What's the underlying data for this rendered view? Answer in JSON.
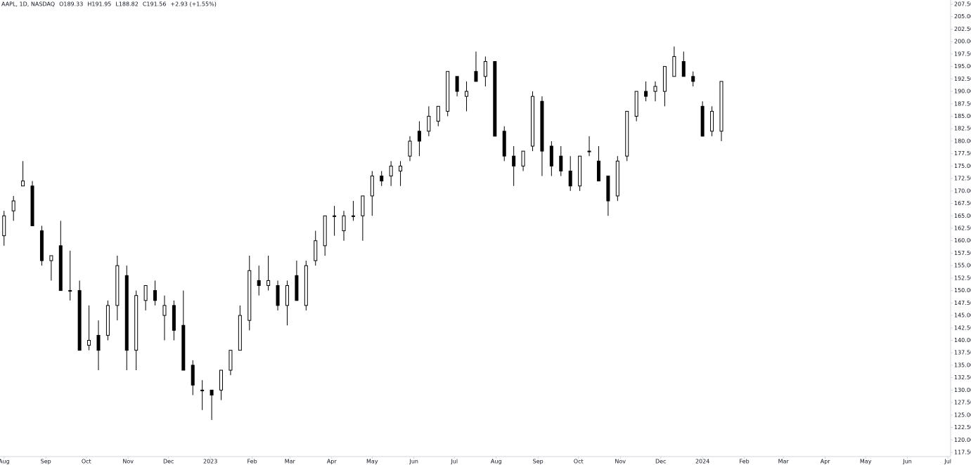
{
  "chart_data": {
    "type": "candlestick",
    "title": "AAPL, 1D, NASDAQ",
    "legend_values": [
      "O189.33",
      "H191.95",
      "L188.82",
      "C191.56",
      "+2.93 (+1.55%)"
    ],
    "up_color": "#ffffff",
    "down_color": "#000000",
    "edge_color": "#000000",
    "xlim": [
      -3,
      702
    ],
    "xticks": [
      {
        "value": 0,
        "label": "Aug"
      },
      {
        "value": 31,
        "label": "Sep"
      },
      {
        "value": 61,
        "label": "Oct"
      },
      {
        "value": 92,
        "label": "Nov"
      },
      {
        "value": 122,
        "label": "Dec"
      },
      {
        "value": 153,
        "label": "2023"
      },
      {
        "value": 184,
        "label": "Feb"
      },
      {
        "value": 212,
        "label": "Mar"
      },
      {
        "value": 243,
        "label": "Apr"
      },
      {
        "value": 273,
        "label": "May"
      },
      {
        "value": 304,
        "label": "Jun"
      },
      {
        "value": 334,
        "label": "Jul"
      },
      {
        "value": 365,
        "label": "Aug"
      },
      {
        "value": 396,
        "label": "Sep"
      },
      {
        "value": 426,
        "label": "Oct"
      },
      {
        "value": 457,
        "label": "Nov"
      },
      {
        "value": 487,
        "label": "Dec"
      },
      {
        "value": 518,
        "label": "2024"
      },
      {
        "value": 549,
        "label": "Feb"
      },
      {
        "value": 578,
        "label": "Mar"
      },
      {
        "value": 609,
        "label": "Apr"
      },
      {
        "value": 639,
        "label": "May"
      },
      {
        "value": 670,
        "label": "Jun"
      },
      {
        "value": 700,
        "label": "Jul"
      }
    ],
    "ylim": [
      116.65,
      208.35
    ],
    "yticks": [
      {
        "value": 117.5,
        "label": "117.50"
      },
      {
        "value": 120,
        "label": "120.00"
      },
      {
        "value": 122.5,
        "label": "122.50"
      },
      {
        "value": 125,
        "label": "125.00"
      },
      {
        "value": 127.5,
        "label": "127.50"
      },
      {
        "value": 130,
        "label": "130.00"
      },
      {
        "value": 132.5,
        "label": "132.50"
      },
      {
        "value": 135,
        "label": "135.00"
      },
      {
        "value": 137.5,
        "label": "137.50"
      },
      {
        "value": 140,
        "label": "140.00"
      },
      {
        "value": 142.5,
        "label": "142.50"
      },
      {
        "value": 145,
        "label": "145.00"
      },
      {
        "value": 147.5,
        "label": "147.50"
      },
      {
        "value": 150,
        "label": "150.00"
      },
      {
        "value": 152.5,
        "label": "152.50"
      },
      {
        "value": 155,
        "label": "155.00"
      },
      {
        "value": 157.5,
        "label": "157.50"
      },
      {
        "value": 160,
        "label": "160.00"
      },
      {
        "value": 162.5,
        "label": "162.50"
      },
      {
        "value": 165,
        "label": "165.00"
      },
      {
        "value": 167.5,
        "label": "167.50"
      },
      {
        "value": 170,
        "label": "170.00"
      },
      {
        "value": 172.5,
        "label": "172.50"
      },
      {
        "value": 175,
        "label": "175.00"
      },
      {
        "value": 177.5,
        "label": "177.50"
      },
      {
        "value": 180,
        "label": "180.00"
      },
      {
        "value": 182.5,
        "label": "182.50"
      },
      {
        "value": 185,
        "label": "185.00"
      },
      {
        "value": 187.5,
        "label": "187.50"
      },
      {
        "value": 190,
        "label": "190.00"
      },
      {
        "value": 192.5,
        "label": "192.50"
      },
      {
        "value": 195,
        "label": "195.00"
      },
      {
        "value": 197.5,
        "label": "197.50"
      },
      {
        "value": 200,
        "label": "200.00"
      },
      {
        "value": 202.5,
        "label": "202.50"
      },
      {
        "value": 205,
        "label": "205.00"
      },
      {
        "value": 207.5,
        "label": "207.50"
      }
    ],
    "x": [
      0,
      7,
      14,
      21,
      28,
      35,
      42,
      49,
      56,
      63,
      70,
      77,
      84,
      91,
      98,
      105,
      112,
      119,
      126,
      133,
      140,
      147,
      154,
      161,
      168,
      175,
      182,
      189,
      196,
      203,
      210,
      217,
      224,
      231,
      238,
      245,
      252,
      259,
      266,
      273,
      280,
      287,
      294,
      301,
      308,
      315,
      322,
      329,
      336,
      343,
      350,
      357,
      364,
      371,
      378,
      385,
      392,
      399,
      406,
      413,
      420,
      427,
      434,
      441,
      448,
      455,
      462,
      469,
      476,
      483,
      490,
      497,
      504,
      511,
      518,
      525,
      532
    ],
    "open": [
      161,
      166,
      171,
      171,
      162,
      156,
      159,
      150,
      150,
      139,
      141,
      141,
      147,
      153,
      138,
      148,
      150,
      145,
      147,
      143,
      135,
      130,
      130,
      130,
      134,
      138,
      144,
      152,
      151,
      151,
      147,
      153,
      147,
      156,
      159,
      165,
      162,
      165,
      165,
      169,
      173,
      173,
      174,
      177,
      182,
      182,
      184,
      186,
      193,
      189,
      194,
      193,
      196,
      182,
      177,
      175,
      179,
      188,
      179,
      177,
      174,
      171,
      178,
      176,
      173,
      169,
      177,
      185,
      190,
      190,
      190,
      193,
      196,
      193,
      187,
      182,
      182
    ],
    "high": [
      166,
      169,
      176,
      172,
      163,
      157,
      164,
      158,
      152,
      147,
      144,
      148,
      157,
      155,
      150,
      151,
      152,
      149,
      148,
      150,
      136,
      132,
      130,
      134,
      138,
      147,
      157,
      155,
      157,
      152,
      152,
      156,
      156,
      162,
      165,
      167,
      166,
      168,
      169,
      174,
      174,
      176,
      176,
      181,
      184,
      187,
      187,
      194,
      193,
      192,
      198,
      197,
      196,
      183,
      179,
      178,
      190,
      189,
      180,
      179,
      177,
      177,
      181,
      179,
      173,
      177,
      186,
      190,
      192,
      192,
      195,
      199,
      198,
      194,
      188,
      187,
      192
    ],
    "low": [
      159,
      164,
      171,
      163,
      155,
      152,
      150,
      148,
      138,
      138,
      134,
      140,
      144,
      134,
      134,
      146,
      147,
      140,
      140,
      134,
      129,
      126,
      124,
      128,
      133,
      138,
      142,
      149,
      150,
      146,
      143,
      148,
      146,
      155,
      157,
      161,
      160,
      164,
      160,
      165,
      171,
      171,
      171,
      176,
      177,
      181,
      183,
      185,
      189,
      186,
      192,
      191,
      181,
      176,
      171,
      174,
      178,
      173,
      173,
      173,
      170,
      170,
      177,
      172,
      165,
      168,
      176,
      184,
      188,
      188,
      187,
      193,
      193,
      191,
      181,
      181,
      180
    ],
    "close": [
      165,
      168,
      172,
      163,
      156,
      157,
      150,
      150,
      138,
      140,
      138,
      147,
      155,
      138,
      149,
      151,
      148,
      147,
      142,
      134,
      131,
      130,
      129,
      134,
      138,
      145,
      154,
      151,
      152,
      147,
      151,
      148,
      155,
      160,
      165,
      165,
      165,
      165,
      169,
      173,
      172,
      175,
      175,
      180,
      180,
      185,
      187,
      194,
      190,
      190,
      192,
      196,
      181,
      177,
      175,
      178,
      189,
      178,
      175,
      174,
      171,
      177,
      178,
      172,
      168,
      176,
      186,
      190,
      189,
      191,
      195,
      197,
      193,
      192,
      181,
      186,
      192
    ]
  }
}
